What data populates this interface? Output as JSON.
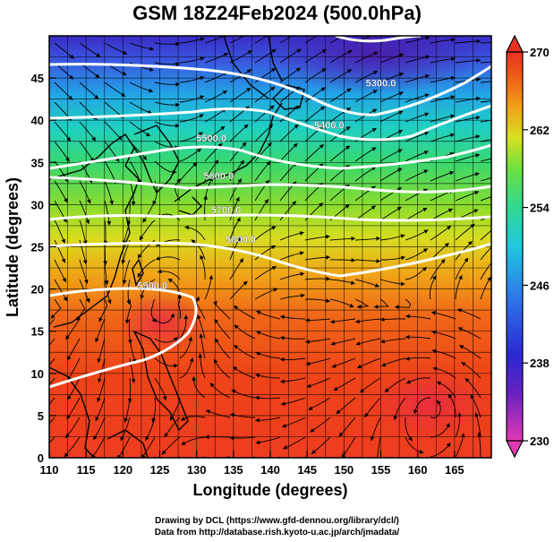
{
  "title": "GSM 18Z24Feb2024 (500.0hPa)",
  "map": {
    "xlabel": "Longitude (degrees)",
    "ylabel": "Latitude  (degrees)",
    "x_ticks": [
      "110",
      "115",
      "120",
      "125",
      "130",
      "135",
      "140",
      "145",
      "150",
      "155",
      "160",
      "165"
    ],
    "y_ticks": [
      "0",
      "5",
      "10",
      "15",
      "20",
      "25",
      "30",
      "35",
      "40",
      "45"
    ],
    "xlim": [
      110,
      170
    ],
    "ylim": [
      0,
      50
    ],
    "contour_labels": [
      {
        "text": "5300.0",
        "lon": 155,
        "lat": 44
      },
      {
        "text": "5400.0",
        "lon": 148,
        "lat": 39
      },
      {
        "text": "5500.0",
        "lon": 132,
        "lat": 37.5
      },
      {
        "text": "5600.0",
        "lon": 133,
        "lat": 33
      },
      {
        "text": "5700.0",
        "lon": 134,
        "lat": 29
      },
      {
        "text": "5800.0",
        "lon": 136,
        "lat": 25.5
      },
      {
        "text": "5900.0",
        "lon": 124,
        "lat": 20
      }
    ]
  },
  "colorbar": {
    "ticks": [
      "270",
      "262",
      "254",
      "246",
      "238",
      "230"
    ],
    "min": 230,
    "max": 270,
    "colors": [
      "#e13ab4",
      "#2a20c8",
      "#2e72e8",
      "#22c0e8",
      "#30d890",
      "#6ee040",
      "#d8e020",
      "#f0a018",
      "#ee5a18",
      "#e83020"
    ]
  },
  "credits": {
    "line1": "Drawing by DCL (https://www.gfd-dennou.org/library/dcl/)",
    "line2": "Data from http://database.rish.kyoto-u.ac.jp/arch/jmadata/"
  }
}
